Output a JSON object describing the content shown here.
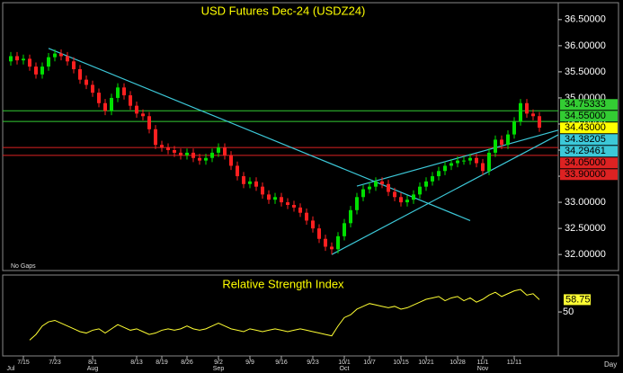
{
  "chart_data": {
    "type": "candlestick",
    "title": "USD Futures Dec-24 (USDZ24)",
    "note": "No Gaps",
    "x_axis_label": "Day",
    "categories": [
      null,
      null,
      "7/15",
      null,
      null,
      null,
      null,
      "7/23",
      null,
      null,
      null,
      null,
      null,
      "8/1",
      null,
      null,
      null,
      null,
      null,
      null,
      "8/13",
      null,
      null,
      null,
      "8/19",
      null,
      null,
      null,
      "8/26",
      null,
      null,
      null,
      null,
      "9/2",
      null,
      null,
      null,
      null,
      "9/9",
      null,
      null,
      null,
      null,
      "9/16",
      null,
      null,
      null,
      null,
      "9/23",
      null,
      null,
      null,
      null,
      "10/1",
      null,
      null,
      null,
      "10/7",
      null,
      null,
      null,
      null,
      "10/15",
      null,
      null,
      null,
      "10/21",
      null,
      null,
      null,
      null,
      "10/28",
      null,
      null,
      null,
      "11/1",
      null,
      null,
      null,
      null,
      "11/11",
      null,
      null,
      null,
      null
    ],
    "months": [
      "Jul",
      null,
      null,
      null,
      null,
      null,
      null,
      null,
      null,
      null,
      null,
      null,
      null,
      "Aug",
      null,
      null,
      null,
      null,
      null,
      null,
      null,
      null,
      null,
      null,
      null,
      null,
      null,
      null,
      null,
      null,
      null,
      null,
      null,
      "Sep",
      null,
      null,
      null,
      null,
      null,
      null,
      null,
      null,
      null,
      null,
      null,
      null,
      null,
      null,
      null,
      null,
      null,
      null,
      null,
      "Oct",
      null,
      null,
      null,
      null,
      null,
      null,
      null,
      null,
      null,
      null,
      null,
      null,
      null,
      null,
      null,
      null,
      null,
      null,
      null,
      null,
      null,
      "Nov",
      null,
      null,
      null,
      null,
      null,
      null,
      null,
      null,
      null
    ],
    "open": [
      35.7,
      35.8,
      35.72,
      35.75,
      35.6,
      35.45,
      35.6,
      35.78,
      35.85,
      35.8,
      35.7,
      35.55,
      35.35,
      35.25,
      35.1,
      34.9,
      34.75,
      35.0,
      35.2,
      35.05,
      34.85,
      34.7,
      34.65,
      34.4,
      34.1,
      34.05,
      34.0,
      33.95,
      33.9,
      33.95,
      33.85,
      33.8,
      33.85,
      33.95,
      34.05,
      33.9,
      33.7,
      33.5,
      33.35,
      33.4,
      33.3,
      33.15,
      33.05,
      33.1,
      33.0,
      32.95,
      32.9,
      32.8,
      32.65,
      32.5,
      32.3,
      32.15,
      32.1,
      32.35,
      32.6,
      32.85,
      33.1,
      33.25,
      33.3,
      33.4,
      33.35,
      33.2,
      33.1,
      33.0,
      33.05,
      33.15,
      33.3,
      33.4,
      33.5,
      33.6,
      33.7,
      33.75,
      33.8,
      33.8,
      33.85,
      33.75,
      33.6,
      33.95,
      34.2,
      34.1,
      34.3,
      34.55,
      34.9,
      34.7,
      34.65
    ],
    "high": [
      35.88,
      35.88,
      35.83,
      35.83,
      35.68,
      35.68,
      35.86,
      35.93,
      35.93,
      35.88,
      35.78,
      35.63,
      35.43,
      35.33,
      35.18,
      34.98,
      35.08,
      35.28,
      35.28,
      35.13,
      34.93,
      34.78,
      34.73,
      34.48,
      34.18,
      34.13,
      34.08,
      34.03,
      34.03,
      34.03,
      33.93,
      33.93,
      34.03,
      34.13,
      34.13,
      33.98,
      33.78,
      33.58,
      33.48,
      33.48,
      33.38,
      33.23,
      33.18,
      33.18,
      33.08,
      33.03,
      32.98,
      32.88,
      32.73,
      32.58,
      32.38,
      32.23,
      32.43,
      32.68,
      32.93,
      33.18,
      33.33,
      33.38,
      33.48,
      33.48,
      33.43,
      33.28,
      33.18,
      33.13,
      33.23,
      33.38,
      33.48,
      33.58,
      33.68,
      33.78,
      33.83,
      33.88,
      33.88,
      33.93,
      33.93,
      33.83,
      34.03,
      34.28,
      34.28,
      34.38,
      34.63,
      34.98,
      34.98,
      34.78,
      34.73
    ],
    "low": [
      35.62,
      35.64,
      35.64,
      35.52,
      35.37,
      35.37,
      35.52,
      35.7,
      35.72,
      35.62,
      35.47,
      35.27,
      35.17,
      35.02,
      34.82,
      34.67,
      34.67,
      34.92,
      34.97,
      34.77,
      34.62,
      34.57,
      34.32,
      34.02,
      33.97,
      33.92,
      33.87,
      33.82,
      33.82,
      33.77,
      33.72,
      33.72,
      33.77,
      33.87,
      33.82,
      33.62,
      33.42,
      33.27,
      33.27,
      33.22,
      33.07,
      32.97,
      32.97,
      32.92,
      32.87,
      32.82,
      32.72,
      32.57,
      32.42,
      32.22,
      32.07,
      32.0,
      32.02,
      32.27,
      32.52,
      32.77,
      33.02,
      33.17,
      33.22,
      33.27,
      33.12,
      33.02,
      32.92,
      32.92,
      32.97,
      33.07,
      33.22,
      33.32,
      33.42,
      33.52,
      33.62,
      33.67,
      33.72,
      33.72,
      33.67,
      33.52,
      33.52,
      33.87,
      34.02,
      34.02,
      34.22,
      34.47,
      34.62,
      34.57,
      34.35
    ],
    "close": [
      35.8,
      35.72,
      35.75,
      35.6,
      35.45,
      35.6,
      35.78,
      35.85,
      35.8,
      35.7,
      35.55,
      35.35,
      35.25,
      35.1,
      34.9,
      34.75,
      35.0,
      35.2,
      35.05,
      34.85,
      34.7,
      34.65,
      34.4,
      34.1,
      34.05,
      34.0,
      33.95,
      33.9,
      33.95,
      33.85,
      33.8,
      33.85,
      33.95,
      34.05,
      33.9,
      33.7,
      33.5,
      33.35,
      33.4,
      33.3,
      33.15,
      33.05,
      33.1,
      33.0,
      32.95,
      32.9,
      32.8,
      32.65,
      32.5,
      32.3,
      32.15,
      32.1,
      32.35,
      32.6,
      32.85,
      33.1,
      33.25,
      33.3,
      33.4,
      33.35,
      33.2,
      33.1,
      33.0,
      33.05,
      33.15,
      33.3,
      33.4,
      33.5,
      33.6,
      33.7,
      33.75,
      33.8,
      33.8,
      33.85,
      33.75,
      33.6,
      33.95,
      34.2,
      34.1,
      34.3,
      34.55,
      34.9,
      34.7,
      34.65,
      34.43
    ],
    "up_color": "#00e000",
    "down_color": "#ff2020",
    "ylim": [
      31.71,
      36.79
    ],
    "yticks": [
      {
        "value": 36.5,
        "label": "36.50000"
      },
      {
        "value": 36.0,
        "label": "36.00000"
      },
      {
        "value": 35.5,
        "label": "35.50000"
      },
      {
        "value": 35.0,
        "label": "35.00000"
      },
      {
        "value": 34.5,
        "label": "34.50000"
      },
      {
        "value": 34.0,
        "label": "34.00000"
      },
      {
        "value": 33.5,
        "label": "33.50000"
      },
      {
        "value": 33.0,
        "label": "33.00000"
      },
      {
        "value": 32.5,
        "label": "32.50000"
      },
      {
        "value": 32.0,
        "label": "32.00000"
      }
    ],
    "last_price_label": "34.43000",
    "last_price_color": "#ffff00",
    "levels": [
      {
        "value": 34.75333,
        "label": "34.75333",
        "color": "#33cc33"
      },
      {
        "value": 34.55,
        "label": "34.55000",
        "color": "#33cc33"
      },
      {
        "value": 34.05,
        "label": "34.05000",
        "color": "#dd2222"
      },
      {
        "value": 33.9,
        "label": "33.90000",
        "color": "#dd2222"
      }
    ],
    "trend_color": "#3cc8d8",
    "trendlines": [
      {
        "x": [
          6,
          73
        ],
        "y": [
          35.95,
          32.65
        ]
      },
      {
        "x": [
          55,
          87
        ],
        "y": [
          33.31,
          34.38205
        ],
        "label": "34.38205"
      },
      {
        "x": [
          51,
          87
        ],
        "y": [
          32.0,
          34.29461
        ],
        "label": "34.29461"
      }
    ],
    "rsi": {
      "title": "Relative Strength Index",
      "color": "#ffff33",
      "ylim": [
        20,
        75
      ],
      "yticks": [
        50
      ],
      "values": [
        null,
        null,
        null,
        30,
        34,
        40,
        43,
        44,
        42,
        40,
        38,
        36,
        35,
        37,
        38,
        35,
        38,
        41,
        39,
        37,
        38,
        36,
        34,
        35,
        37,
        38,
        37,
        38,
        40,
        38,
        37,
        38,
        40,
        42,
        40,
        38,
        37,
        36,
        38,
        37,
        36,
        37,
        38,
        37,
        36,
        37,
        38,
        37,
        36,
        35,
        34,
        33,
        40,
        46,
        48,
        52,
        54,
        56,
        55,
        54,
        53,
        54,
        52,
        53,
        55,
        57,
        59,
        60,
        61,
        58,
        60,
        61,
        58,
        60,
        57,
        59,
        62,
        64,
        61,
        63,
        65,
        66,
        62,
        63,
        58.75
      ]
    }
  }
}
